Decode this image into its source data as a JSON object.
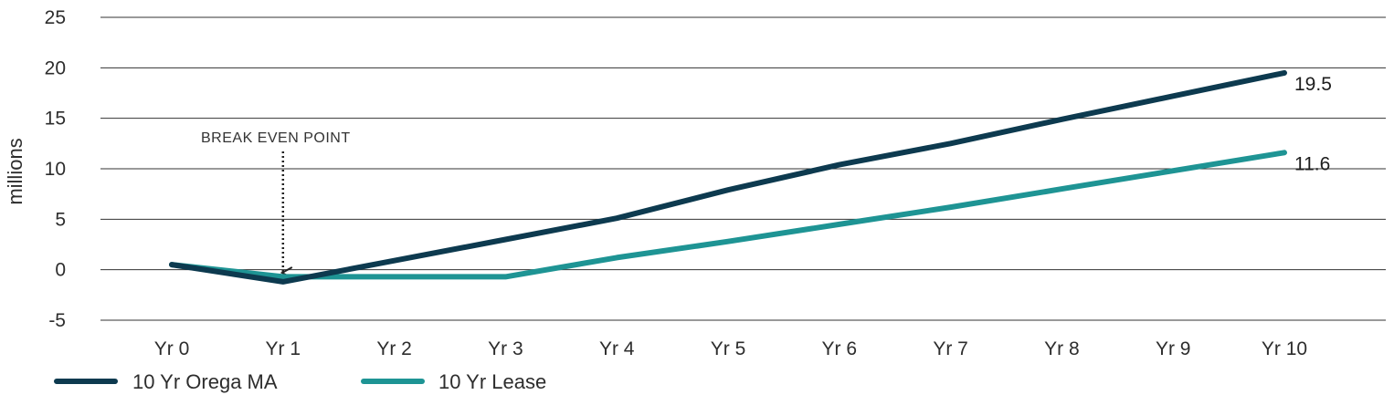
{
  "chart_data": {
    "type": "line",
    "ylabel": "millions",
    "ylim": [
      -5,
      25
    ],
    "yticks": [
      -5,
      0,
      5,
      10,
      15,
      20,
      25
    ],
    "grid": true,
    "categories": [
      "Yr 0",
      "Yr 1",
      "Yr 2",
      "Yr 3",
      "Yr 4",
      "Yr 5",
      "Yr 6",
      "Yr 7",
      "Yr 8",
      "Yr 9",
      "Yr 10"
    ],
    "series": [
      {
        "name": "10 Yr Orega MA",
        "color": "#0d3a4f",
        "values": [
          0.5,
          -1.2,
          0.9,
          3.0,
          5.1,
          7.9,
          10.4,
          12.5,
          14.9,
          17.2,
          19.5
        ],
        "end_label": "19.5"
      },
      {
        "name": "10 Yr Lease",
        "color": "#1e9494",
        "values": [
          0.5,
          -0.7,
          -0.7,
          -0.7,
          1.2,
          2.8,
          4.5,
          6.2,
          8.0,
          9.8,
          11.6
        ],
        "end_label": "11.6"
      }
    ],
    "annotation": {
      "text": "BREAK EVEN POINT",
      "category": "Yr 1"
    },
    "legend_position": "bottom-left"
  }
}
